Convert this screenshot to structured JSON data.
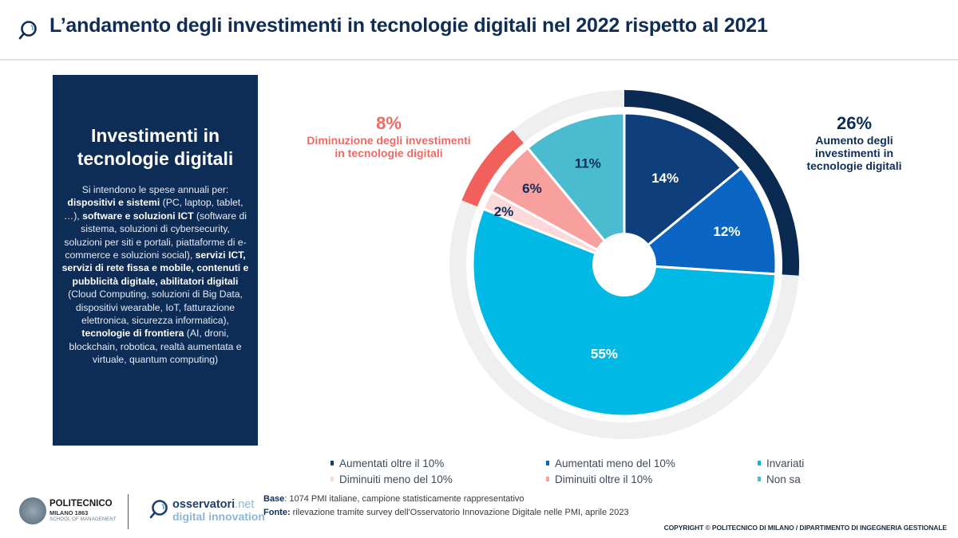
{
  "header": {
    "title": "L’andamento degli investimenti in tecnologie digitali nel 2022 rispetto al 2021",
    "icon": "magnifier-icon"
  },
  "side_panel": {
    "title": "Investimenti in tecnologie digitali",
    "intro": "Si intendono le spese annuali per: ",
    "segments": [
      {
        "text": "dispositivi e sistemi",
        "bold": true
      },
      {
        "text": " (PC, laptop, tablet, …), ",
        "bold": false
      },
      {
        "text": "software e soluzioni ICT",
        "bold": true
      },
      {
        "text": " (software di sistema, soluzioni di cybersecurity, soluzioni per siti e portali, piattaforme di e-commerce e soluzioni social), ",
        "bold": false
      },
      {
        "text": "servizi ICT, servizi di rete fissa e mobile, contenuti e pubblicità digitale, abilitatori digitali",
        "bold": true
      },
      {
        "text": " (Cloud Computing, soluzioni di Big Data, dispositivi wearable, IoT, fatturazione elettronica, sicurezza informatica), ",
        "bold": false
      },
      {
        "text": "tecnologie di frontiera",
        "bold": true
      },
      {
        "text": " (AI, droni, blockchain, robotica, realtà aumentata e virtuale, quantum computing)",
        "bold": false
      }
    ]
  },
  "callouts": {
    "decrease": {
      "pct": "8%",
      "text": "Diminuzione degli investimenti in tecnologie digitali",
      "color": "#ef6a64"
    },
    "increase": {
      "pct": "26%",
      "text": "Aumento degli investimenti in tecnologie digitali",
      "color": "#0d2d57"
    }
  },
  "chart_data": {
    "type": "pie",
    "title": "L’andamento degli investimenti in tecnologie digitali nel 2022 rispetto al 2021",
    "start": "12 o'clock",
    "direction": "clockwise",
    "slices": [
      {
        "label": "Aumentati oltre il 10%",
        "value": 14,
        "display": "14%",
        "color": "#0f3f7a",
        "label_color": "#ffffff"
      },
      {
        "label": "Aumentati meno del 10%",
        "value": 12,
        "display": "12%",
        "color": "#0a66c2",
        "label_color": "#ffffff"
      },
      {
        "label": "Invariati",
        "value": 55,
        "display": "55%",
        "color": "#00b9e4",
        "label_color": "#ffffff"
      },
      {
        "label": "Diminuiti meno del 10%",
        "value": 2,
        "display": "2%",
        "color": "#fbd9d9",
        "label_color": "#0d2d57"
      },
      {
        "label": "Diminuiti oltre il 10%",
        "value": 6,
        "display": "6%",
        "color": "#f8a09d",
        "label_color": "#0d2d57"
      },
      {
        "label": "Non sa",
        "value": 11,
        "display": "11%",
        "color": "#4bbccf",
        "label_color": "#0d2d57"
      }
    ],
    "outer_ring": [
      {
        "label": "Aumento degli investimenti in tecnologie digitali",
        "value": 26,
        "color": "#0b2a52"
      },
      {
        "label": "Diminuzione degli investimenti in tecnologie digitali",
        "value": 8,
        "color": "#f2605c"
      }
    ],
    "ring_background": "#efefef",
    "legend": {
      "placement": "bottom",
      "entries": [
        {
          "label": "Aumentati oltre il 10%",
          "color": "#0f3f7a"
        },
        {
          "label": "Aumentati meno del 10%",
          "color": "#0a66c2"
        },
        {
          "label": "Invariati",
          "color": "#00b9e4"
        },
        {
          "label": "Diminuiti meno del 10%",
          "color": "#fbd9d9"
        },
        {
          "label": "Diminuiti oltre il 10%",
          "color": "#f8a09d"
        },
        {
          "label": "Non sa",
          "color": "#4bbccf"
        }
      ]
    }
  },
  "footer": {
    "polimi": {
      "line1": "POLITECNICO",
      "line2": "MILANO 1863",
      "line3": "SCHOOL OF MANAGEMENT"
    },
    "osservatori": {
      "name": "osservatori",
      "tld": ".net",
      "tagline": "digital innovation"
    },
    "base_label": "Base",
    "base_text": ": 1074 PMI italiane,  campione statisticamente  rappresentativo",
    "fonte_label": "Fonte:",
    "fonte_text": " rilevazione tramite survey dell'Osservatorio Innovazione Digitale nelle PMI, aprile 2023",
    "copyright": "COPYRIGHT © POLITECNICO DI MILANO / DIPARTIMENTO DI INGEGNERIA GESTIONALE"
  }
}
